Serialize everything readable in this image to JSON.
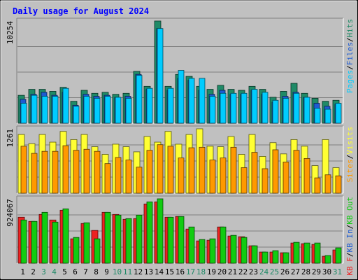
{
  "chart_data": {
    "type": "bar",
    "title": "Daily usage for August 2024",
    "categories": [
      "1",
      "2",
      "3",
      "4",
      "5",
      "6",
      "7",
      "8",
      "9",
      "10",
      "11",
      "12",
      "13",
      "14",
      "15",
      "16",
      "17",
      "18",
      "19",
      "20",
      "21",
      "22",
      "23",
      "24",
      "25",
      "26",
      "27",
      "28",
      "29",
      "30",
      "31"
    ],
    "weekend_days": [
      "3",
      "4",
      "10",
      "11",
      "17",
      "18",
      "24",
      "25",
      "31"
    ],
    "panels": [
      {
        "id": "hits",
        "max_label": "10254",
        "ymax": 10254,
        "series": [
          {
            "name": "Hits",
            "color": "#1f8a67",
            "values": [
              2800,
              3400,
              3400,
              3200,
              3600,
              2200,
              3300,
              3000,
              3100,
              2900,
              3000,
              5200,
              3700,
              10254,
              3700,
              4900,
              4700,
              3700,
              3400,
              3800,
              3400,
              3300,
              3700,
              3400,
              2600,
              3200,
              4000,
              3000,
              2500,
              2200,
              2300
            ]
          },
          {
            "name": "Files",
            "color": "#1d5bd2",
            "values": [
              2400,
              2900,
              3100,
              2800,
              3100,
              1800,
              2900,
              2700,
              2800,
              2600,
              2700,
              4900,
              3400,
              9500,
              3300,
              4500,
              4300,
              3300,
              2900,
              3300,
              2900,
              2900,
              3300,
              2900,
              2100,
              2700,
              3100,
              2600,
              2000,
              1700,
              1900
            ]
          },
          {
            "name": "Pages",
            "color": "#00ccff",
            "values": [
              2000,
              2800,
              2700,
              2700,
              3500,
              1700,
              2700,
              2500,
              2700,
              2600,
              2500,
              4800,
              3500,
              9500,
              3500,
              5300,
              4500,
              4500,
              2700,
              3000,
              3000,
              3000,
              3400,
              3100,
              2300,
              2500,
              3000,
              2600,
              1500,
              1400,
              2000
            ]
          }
        ],
        "legend": [
          {
            "text": "Pages",
            "color": "#00ccff"
          },
          {
            "text": "Files",
            "color": "#1d5bd2"
          },
          {
            "text": "Hits",
            "color": "#1f8a67"
          }
        ]
      },
      {
        "id": "visits",
        "max_label": "1261",
        "ymax": 1261,
        "series": [
          {
            "name": "Visits",
            "color": "#ffff33",
            "values": [
              1150,
              970,
              1150,
              1000,
              1210,
              1050,
              1150,
              910,
              760,
              960,
              910,
              810,
              1110,
              1000,
              1210,
              960,
              1150,
              1261,
              920,
              910,
              1110,
              760,
              1150,
              720,
              990,
              770,
              1050,
              920,
              540,
              1050,
              500
            ]
          },
          {
            "name": "Sites",
            "color": "#ff9900",
            "values": [
              920,
              780,
              820,
              820,
              930,
              840,
              860,
              820,
              580,
              700,
              650,
              510,
              840,
              950,
              920,
              690,
              890,
              900,
              650,
              690,
              900,
              500,
              800,
              480,
              850,
              610,
              840,
              680,
              300,
              360,
              340
            ]
          }
        ],
        "legend": [
          {
            "text": "Sites",
            "color": "#ff9900"
          },
          {
            "text": "Visits",
            "color": "#ffff33"
          }
        ]
      },
      {
        "id": "kbytes",
        "max_label": "924067",
        "ymax": 924067,
        "series": [
          {
            "name": "KB F",
            "color": "#ee2222",
            "values": [
              660000,
              600000,
              700000,
              620000,
              760000,
              350000,
              570000,
              470000,
              730000,
              700000,
              630000,
              640000,
              850000,
              880000,
              660000,
              670000,
              490000,
              320000,
              330000,
              520000,
              390000,
              380000,
              250000,
              160000,
              160000,
              150000,
              290000,
              280000,
              270000,
              100000,
              190000
            ]
          },
          {
            "name": "KB In",
            "color": "#1d5bd2",
            "values": [
              0,
              0,
              0,
              0,
              0,
              0,
              0,
              0,
              0,
              0,
              0,
              0,
              0,
              0,
              0,
              0,
              0,
              0,
              0,
              0,
              0,
              0,
              0,
              0,
              0,
              0,
              0,
              0,
              0,
              0,
              0
            ]
          },
          {
            "name": "KB Out",
            "color": "#11cc11",
            "values": [
              620000,
              600000,
              730000,
              590000,
              780000,
              370000,
              580000,
              350000,
              730000,
              690000,
              640000,
              690000,
              880000,
              924067,
              660000,
              670000,
              520000,
              340000,
              350000,
              520000,
              400000,
              370000,
              250000,
              160000,
              180000,
              150000,
              300000,
              290000,
              290000,
              110000,
              220000
            ]
          }
        ],
        "legend": [
          {
            "text": "KB F",
            "color": "#ee2222"
          },
          {
            "text": "KB In",
            "color": "#1d5bd2"
          },
          {
            "text": "KB Out",
            "color": "#11cc11"
          }
        ]
      }
    ],
    "colors": {
      "background": "#c0c0c0",
      "title": "#0000ff",
      "weekday_label": "#000000",
      "weekend_label": "#1f8a67"
    }
  }
}
